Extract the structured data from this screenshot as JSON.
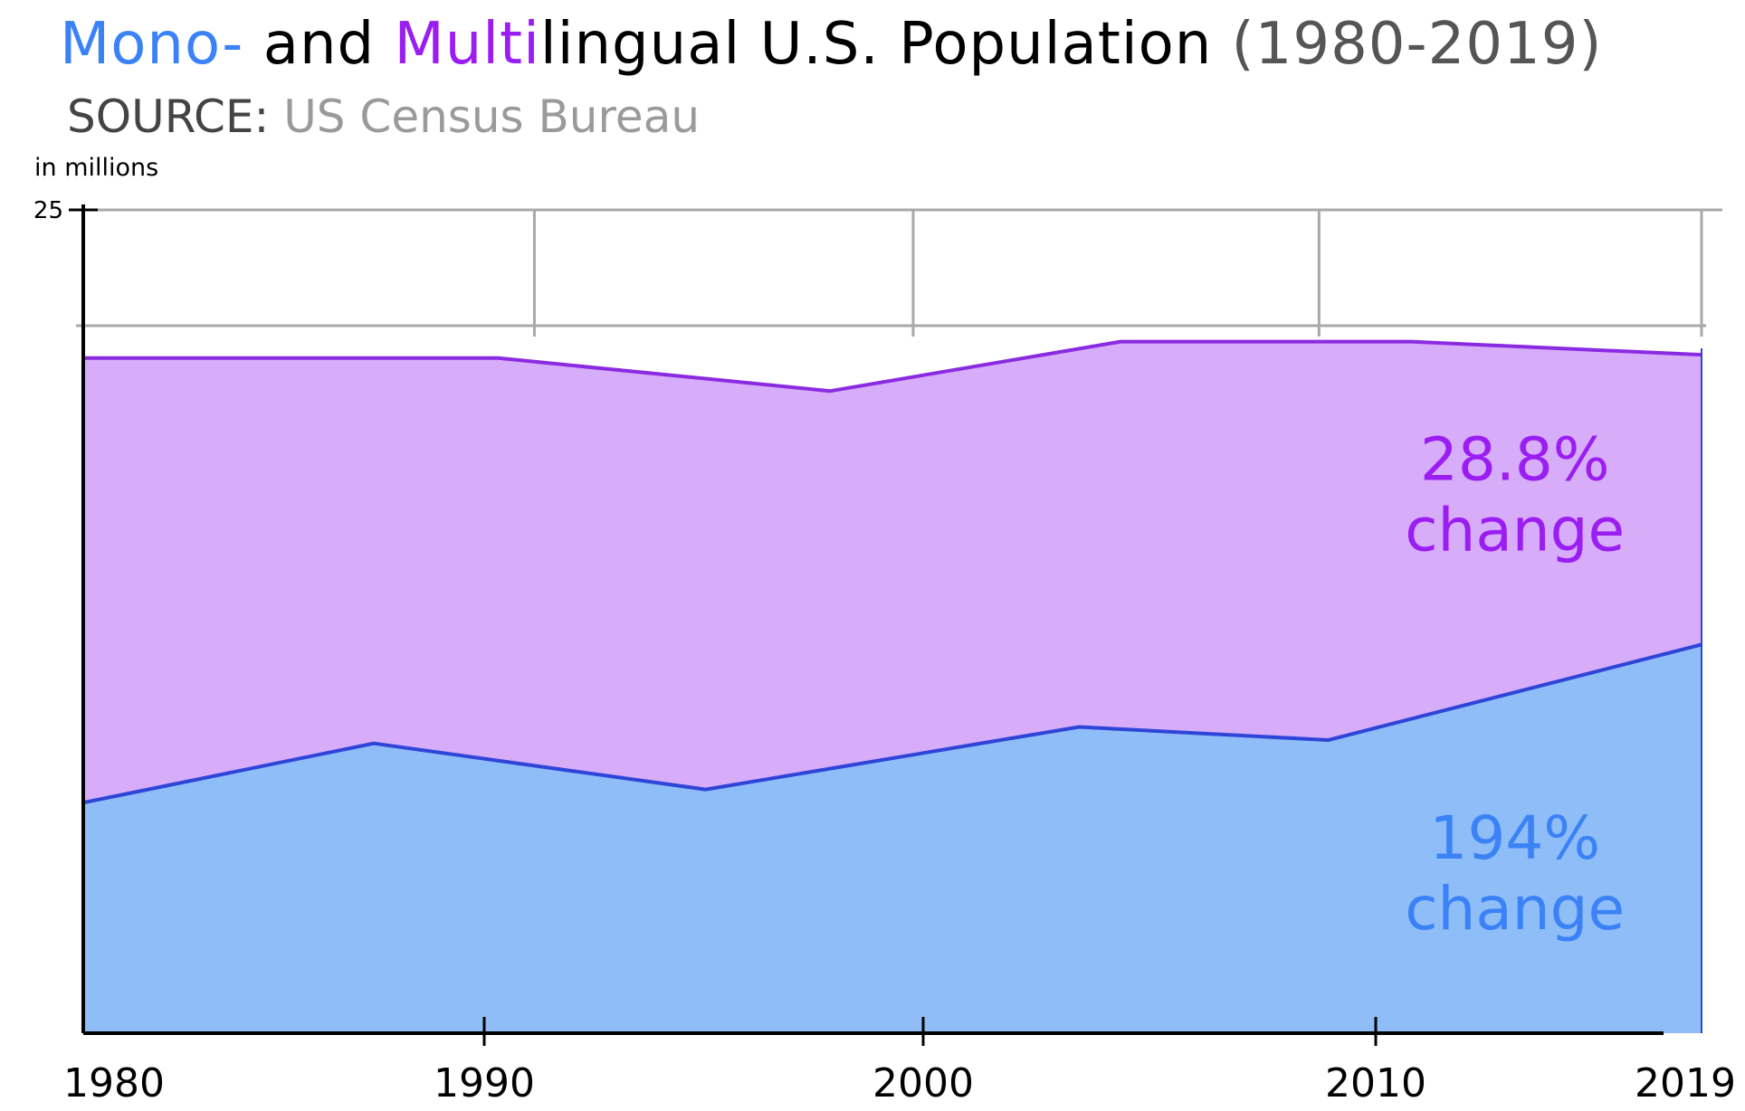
{
  "title": {
    "part_mono": "Mono-",
    "part_and": " and ",
    "part_multi": "Multi",
    "part_rest": "lingual U.S. Population",
    "part_years": " (1980-2019)"
  },
  "source": {
    "label": "SOURCE:",
    "value": "US Census Bureau"
  },
  "colors": {
    "mono_text": "#3b82f6",
    "multi_text": "#9a1df2",
    "mono_fill": "#8fbdf7",
    "multi_fill": "#d7acf8",
    "mono_line": "#2f45d8",
    "multi_line": "#8a2be2",
    "years_text": "#555555",
    "source_label": "#444444",
    "source_value": "#9a9a9a",
    "grid": "#a9a9a9"
  },
  "chart_data": {
    "type": "area",
    "unit_label": "in millions",
    "x_ticks": [
      "1980",
      "1990",
      "2000",
      "2010",
      "2019"
    ],
    "y_ticks": [
      "25"
    ],
    "xlim": [
      1980,
      2019
    ],
    "ylim": [
      0,
      25
    ],
    "grid": true,
    "series": [
      {
        "key": "multi",
        "color_key": "multi",
        "x": [
          1980,
          1990,
          1998,
          2005,
          2012,
          2019
        ],
        "values": [
          20.5,
          20.5,
          19.5,
          21.0,
          21.0,
          20.6
        ]
      },
      {
        "key": "mono",
        "color_key": "mono",
        "x": [
          1980,
          1987,
          1995,
          2004,
          2010,
          2019
        ],
        "values": [
          7.0,
          8.8,
          7.4,
          9.3,
          8.9,
          11.8
        ]
      }
    ],
    "annotations": [
      {
        "key": "multi",
        "lines": [
          "28.8%",
          "change"
        ],
        "x": 2014.5,
        "y": 16.8
      },
      {
        "key": "mono",
        "lines": [
          "194%",
          "change"
        ],
        "x": 2014.5,
        "y": 5.3
      }
    ]
  }
}
